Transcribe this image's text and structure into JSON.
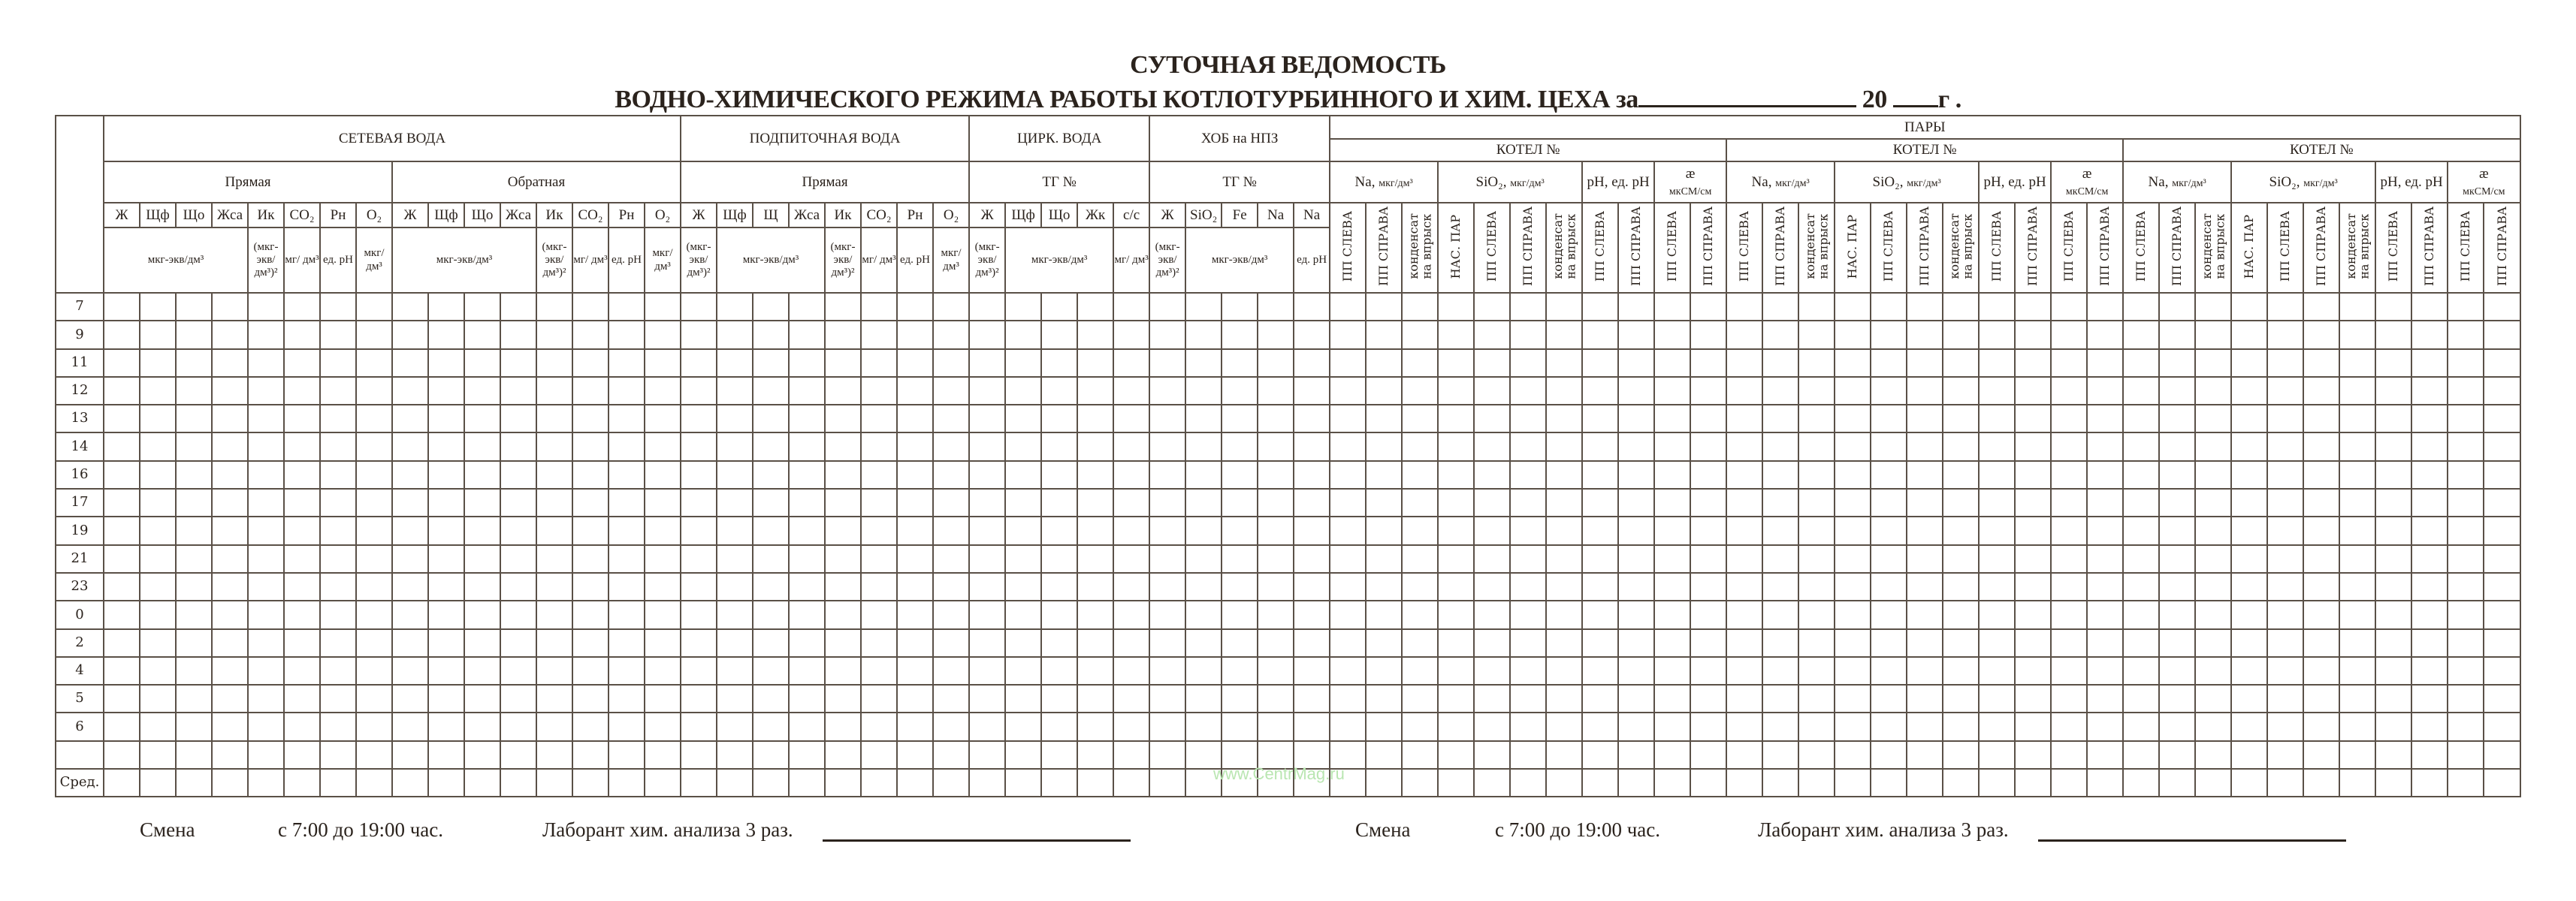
{
  "title": {
    "line1": "СУТОЧНАЯ ВЕДОМОСТЬ",
    "line2": "ВОДНО-ХИМИЧЕСКОГО РЕЖИМА РАБОТЫ КОТЛОТУРБИННОГО И ХИМ. ЦЕХА  за",
    "year_prefix": "20",
    "year_suffix": "г ."
  },
  "header": {
    "row_a": [
      {
        "text": "",
        "colspan": 1,
        "rowspan": 5
      },
      {
        "text": "СЕТЕВАЯ ВОДА",
        "colspan": 16,
        "rowspan": 2
      },
      {
        "text": "ПОДПИТОЧНАЯ ВОДА",
        "colspan": 8,
        "rowspan": 2
      },
      {
        "text": "ЦИРК. ВОДА",
        "colspan": 5,
        "rowspan": 2
      },
      {
        "text": "ХОБ на НПЗ",
        "colspan": 5,
        "rowspan": 2
      },
      {
        "text": "ПАРЫ",
        "colspan": 33,
        "rowspan": 1
      }
    ],
    "row_b": [
      {
        "text": "КОТЕЛ №",
        "colspan": 11
      },
      {
        "text": "КОТЕЛ №",
        "colspan": 11
      },
      {
        "text": "КОТЕЛ №",
        "colspan": 11
      }
    ],
    "row_c": [
      {
        "text": "Прямая",
        "colspan": 8
      },
      {
        "text": "Обратная",
        "colspan": 8
      },
      {
        "text": "Прямая",
        "colspan": 8
      },
      {
        "text": "ТГ №",
        "colspan": 5
      },
      {
        "text": "ТГ №",
        "colspan": 5
      },
      {
        "text": "Na,",
        "small": "мкг/дм³",
        "colspan": 3
      },
      {
        "text": "SiO₂,",
        "small": "мкг/дм³",
        "colspan": 4
      },
      {
        "text": "pH, ед. pH",
        "colspan": 2
      },
      {
        "text": "æ",
        "small": "мкСМ/см",
        "colspan": 2,
        "stack": true
      },
      {
        "text": "Na,",
        "small": "мкг/дм³",
        "colspan": 3
      },
      {
        "text": "SiO₂,",
        "small": "мкг/дм³",
        "colspan": 4
      },
      {
        "text": "pH, ед. pH",
        "colspan": 2
      },
      {
        "text": "æ",
        "small": "мкСМ/см",
        "colspan": 2,
        "stack": true
      },
      {
        "text": "Na,",
        "small": "мкг/дм³",
        "colspan": 3
      },
      {
        "text": "SiO₂,",
        "small": "мкг/дм³",
        "colspan": 4
      },
      {
        "text": "pH, ед. pH",
        "colspan": 2
      },
      {
        "text": "æ",
        "small": "мкСМ/см",
        "colspan": 2,
        "stack": true
      }
    ],
    "params": [
      "Ж",
      "Щф",
      "Що",
      "Жса",
      "Ик",
      "CO₂",
      "Рн",
      "O₂",
      "Ж",
      "Щф",
      "Що",
      "Жса",
      "Ик",
      "CO₂",
      "Рн",
      "O₂",
      "Ж",
      "Щф",
      "Щ",
      "Жса",
      "Ик",
      "CO₂",
      "Рн",
      "O₂",
      "Ж",
      "Щф",
      "Що",
      "Жк",
      "с/с",
      "Ж",
      "SiO₂",
      "Fe",
      "Na",
      "Na"
    ],
    "steam_points": [
      "ПП СЛЕВА",
      "ПП СПРАВА",
      "конденсат\nна впрыск",
      "НАС. ПАР",
      "ПП СЛЕВА",
      "ПП СПРАВА",
      "конденсат\nна впрыск",
      "ПП СЛЕВА",
      "ПП СПРАВА",
      "ПП СЛЕВА",
      "ПП СПРАВА",
      "ПП СЛЕВА",
      "ПП СПРАВА",
      "конденсат\nна впрыск",
      "НАС. ПАР",
      "ПП СЛЕВА",
      "ПП СПРАВА",
      "конденсат\nна впрыск",
      "ПП СЛЕВА",
      "ПП СПРАВА",
      "ПП СЛЕВА",
      "ПП СПРАВА",
      "ПП СЛЕВА",
      "ПП СПРАВА",
      "конденсат\nна впрыск",
      "НАС. ПАР",
      "ПП СЛЕВА",
      "ПП СПРАВА",
      "конденсат\nна впрыск",
      "ПП СЛЕВА",
      "ПП СПРАВА",
      "ПП СЛЕВА",
      "ПП СПРАВА"
    ],
    "units": [
      {
        "text": "мкг-экв/дм³",
        "colspan": 4
      },
      {
        "text": "(мкг- экв/ дм³)²",
        "colspan": 1
      },
      {
        "text": "мг/ дм³",
        "colspan": 1
      },
      {
        "text": "ед. pH",
        "colspan": 1
      },
      {
        "text": "мкг/ дм³",
        "colspan": 1
      },
      {
        "text": "мкг-экв/дм³",
        "colspan": 4
      },
      {
        "text": "(мкг- экв/ дм³)²",
        "colspan": 1
      },
      {
        "text": "мг/ дм³",
        "colspan": 1
      },
      {
        "text": "ед. pH",
        "colspan": 1
      },
      {
        "text": "мкг/ дм³",
        "colspan": 1
      },
      {
        "text": "(мкг- экв/ дм³)²",
        "colspan": 1
      },
      {
        "text": "мкг-экв/дм³",
        "colspan": 3
      },
      {
        "text": "(мкг- экв/ дм³)²",
        "colspan": 1
      },
      {
        "text": "мг/ дм³",
        "colspan": 1
      },
      {
        "text": "ед. pH",
        "colspan": 1
      },
      {
        "text": "мкг/ дм³",
        "colspan": 1
      },
      {
        "text": "(мкг- экв/ дм³)²",
        "colspan": 1
      },
      {
        "text": "мкг-экв/дм³",
        "colspan": 3
      },
      {
        "text": "мг/ дм³",
        "colspan": 1
      },
      {
        "text": "(мкг- экв/ дм³)²",
        "colspan": 1
      },
      {
        "text": "мкг-экв/дм³",
        "colspan": 3
      },
      {
        "text": "ед. pH",
        "colspan": 1
      }
    ]
  },
  "time_rows": [
    "7",
    "9",
    "11",
    "12",
    "13",
    "14",
    "16",
    "17",
    "19",
    "21",
    "23",
    "0",
    "2",
    "4",
    "5",
    "6",
    "",
    "Сред."
  ],
  "footer": [
    {
      "shift": "Смена",
      "hours": "с 7:00 до 19:00 час.",
      "lab": "Лаборант хим. анализа 3 раз."
    },
    {
      "shift": "Смена",
      "hours": "с 7:00 до 19:00 час.",
      "lab": "Лаборант хим. анализа 3 раз."
    }
  ],
  "watermark": "www.CentrMag.ru",
  "colors": {
    "ink": "#2b231d",
    "grid": "#5a5047",
    "watermark": "#b9e6b1"
  }
}
